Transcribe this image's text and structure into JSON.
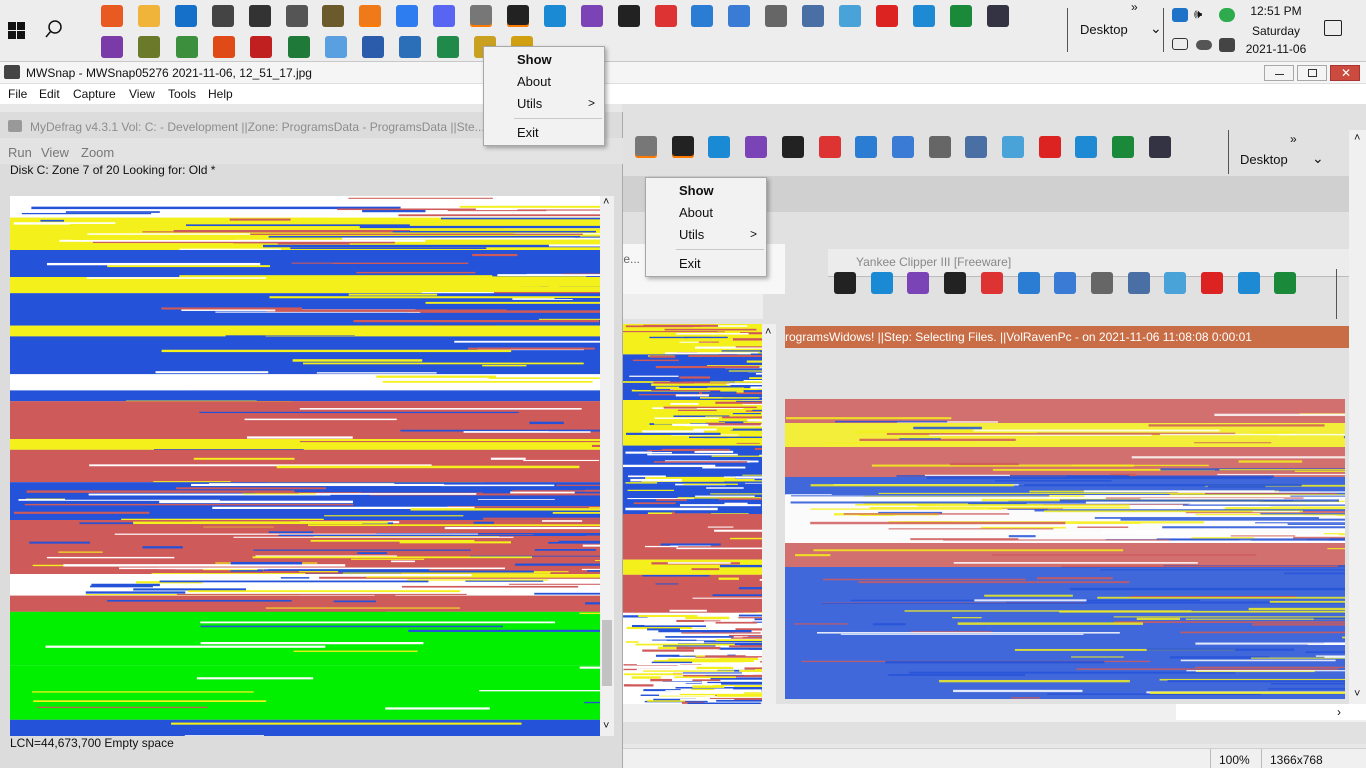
{
  "taskbar": {
    "row1_icons": [
      "firefox-icon",
      "folder-icon",
      "outlook-icon",
      "remote-icon",
      "terminal-icon",
      "printer-icon",
      "gimp-icon",
      "bookmark-app-icon",
      "messenger-icon",
      "discord-icon",
      "clock-app-icon",
      "cmd-icon",
      "vscode-icon",
      "visual-studio-icon",
      "cmd-icon",
      "snip-icon",
      "powershell-icon",
      "network-icon",
      "gear-icon",
      "network-connections-icon",
      "control-panel-icon",
      "pdf-icon",
      "check-app-icon",
      "app-green-icon",
      "monitor-icon"
    ],
    "row2_icons": [
      "onenote-icon",
      "tree-icon",
      "chrome-icon",
      "office-icon",
      "acrobat-icon",
      "excel-sheet-icon",
      "notepad-icon",
      "word-icon",
      "file-icon",
      "sheet-icon",
      "mydefrag-tray-icon",
      "help-tray-icon"
    ],
    "desktop_label": "Desktop",
    "overflow": "»",
    "clock": {
      "time": "12:51 PM",
      "day": "Saturday",
      "date": "2021-11-06"
    }
  },
  "mwsnap": {
    "title": "MWSnap - MWSnap05276 2021-11-06, 12_51_17.jpg",
    "menu": [
      "File",
      "Edit",
      "Capture",
      "View",
      "Tools",
      "Help"
    ],
    "status_zoom": "100%",
    "status_size": "1366x768"
  },
  "mydefrag": {
    "title": "MyDefrag v4.3.1    Vol: C: - Development ||Zone: ProgramsData - ProgramsData ||Ste...",
    "menu": [
      "Run",
      "View",
      "Zoom"
    ],
    "status": "Disk C:    Zone 7 of 20    Looking for: Old *",
    "bottom": "LCN=44,673,700     Empty space"
  },
  "context_menu": {
    "items": [
      "Show",
      "About",
      "Utils",
      "Exit"
    ],
    "submenu_arrow": ">"
  },
  "ghost": {
    "desktop_label": "Desktop",
    "yankee_title": "Yankee Clipper III  [Freeware]",
    "progress_line": "rogramsWidows! ||Step: Selecting Files. ||VolRavenPc -  on 2021-11-06 11:08:08 0:00:01",
    "partial_te": "te..."
  },
  "colors": {
    "blue": "#2452d8",
    "yellow": "#f4f01c",
    "red": "#cf5a5a",
    "green": "#00f000",
    "white": "#ffffff",
    "orange": "#c86d45"
  }
}
